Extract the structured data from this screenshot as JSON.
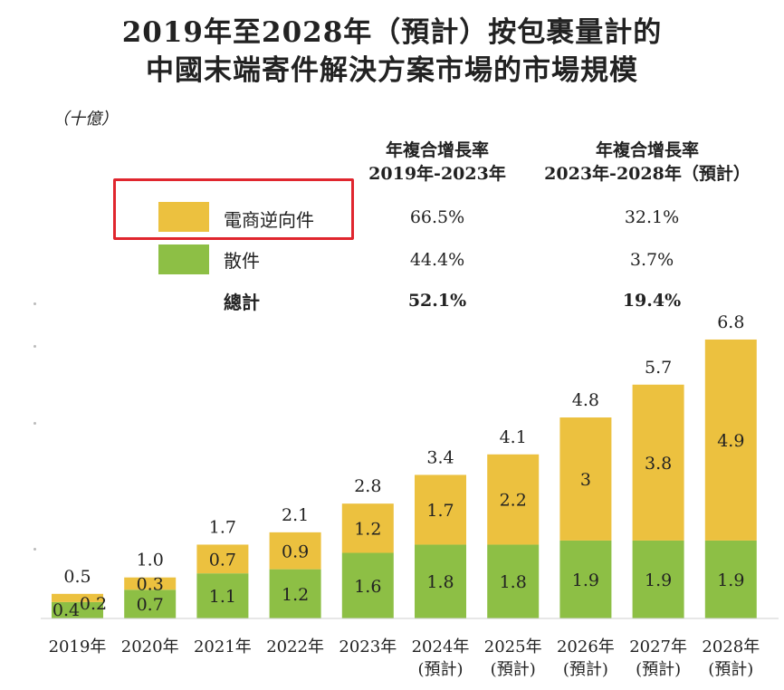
{
  "title_line1": "2019年至2028年（預計）按包裹量計的",
  "title_line2": "中國末端寄件解決方案市場的市場規模",
  "unit": "（十億）",
  "cagr_table": {
    "header1_line1": "年複合增長率",
    "header1_line2": "2019年-2023年",
    "header2_line1": "年複合增長率",
    "header2_line2": "2023年-2028年（預計）",
    "rows": [
      {
        "name": "電商逆向件",
        "cagr1": "66.5%",
        "cagr2": "32.1%",
        "color": "#ecc13f"
      },
      {
        "name": "散件",
        "cagr1": "44.4%",
        "cagr2": "3.7%",
        "color": "#8dbf45"
      },
      {
        "name": "總計",
        "cagr1": "52.1%",
        "cagr2": "19.4%"
      }
    ]
  },
  "chart_data": {
    "type": "bar",
    "stacked": true,
    "categories": [
      "2019年",
      "2020年",
      "2021年",
      "2022年",
      "2023年",
      "2024年\n(預計)",
      "2025年\n(預計)",
      "2026年\n(預計)",
      "2027年\n(預計)",
      "2028年\n(預計)"
    ],
    "series": [
      {
        "name": "散件",
        "values": [
          0.4,
          0.7,
          1.1,
          1.2,
          1.6,
          1.8,
          1.8,
          1.9,
          1.9,
          1.9
        ],
        "color": "#8dbf45"
      },
      {
        "name": "電商逆向件",
        "values": [
          0.2,
          0.3,
          0.7,
          0.9,
          1.2,
          1.7,
          2.2,
          3.0,
          3.8,
          4.9
        ],
        "color": "#ecc13f"
      }
    ],
    "totals": [
      0.5,
      1.0,
      1.7,
      2.1,
      2.8,
      3.4,
      4.1,
      4.8,
      5.7,
      6.8
    ],
    "legend_position": "top-left"
  }
}
